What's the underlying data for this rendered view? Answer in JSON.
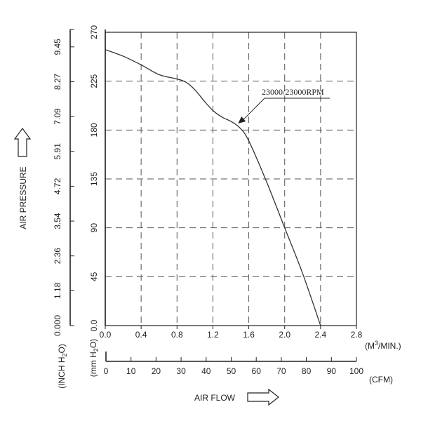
{
  "chart_data": {
    "type": "line",
    "series": [
      {
        "name": "23000/23000RPM",
        "x": [
          0.0,
          0.2,
          0.4,
          0.6,
          0.8,
          0.9,
          1.0,
          1.1,
          1.2,
          1.3,
          1.4,
          1.5,
          1.6,
          1.8,
          2.0,
          2.2,
          2.4
        ],
        "y": [
          254,
          248,
          240,
          231,
          227,
          224,
          217,
          207,
          198,
          192,
          188,
          182,
          170,
          132,
          90,
          48,
          0
        ]
      }
    ],
    "xaxis_m3": {
      "label": "(M3/MIN.)",
      "ticks": [
        "0.0",
        "0.4",
        "0.8",
        "1.2",
        "1.6",
        "2.0",
        "2.4",
        "2.8"
      ],
      "range": [
        0,
        2.8
      ]
    },
    "xaxis_cfm": {
      "label": "(CFM)",
      "ticks": [
        "0",
        "10",
        "20",
        "30",
        "40",
        "50",
        "60",
        "70",
        "80",
        "90",
        "100"
      ],
      "range": [
        0,
        100
      ]
    },
    "yaxis_mmh2o": {
      "label": "(mm H2O)",
      "ticks": [
        "0.0",
        "45",
        "90",
        "135",
        "180",
        "225",
        "270"
      ],
      "range": [
        0,
        270
      ]
    },
    "yaxis_inch": {
      "label": "(INCH H2O)",
      "ticks": [
        "0.000",
        "1.18",
        "2.36",
        "3.54",
        "4.72",
        "5.91",
        "7.09",
        "8.27",
        "9.45"
      ]
    },
    "xlabel": "AIR FLOW",
    "ylabel": "AIR PRESSURE",
    "annotation": "23000/23000RPM",
    "grid": true
  }
}
